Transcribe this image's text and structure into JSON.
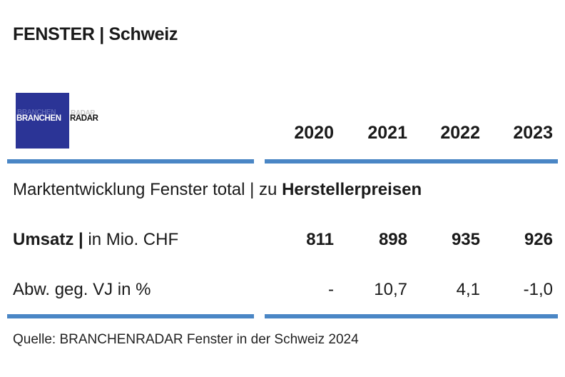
{
  "title": "FENSTER | Schweiz",
  "logo": {
    "part1": "BRANCHEN",
    "part2": "RADAR",
    "ghost": "RADAR"
  },
  "years": [
    "2020",
    "2021",
    "2022",
    "2023"
  ],
  "section": {
    "prefix": "Marktentwicklung Fenster total | zu ",
    "emphasis": "Herstellerpreisen"
  },
  "rows": [
    {
      "label_bold": "Umsatz |",
      "label_rest": " in Mio. CHF",
      "values": [
        "811",
        "898",
        "935",
        "926"
      ]
    },
    {
      "label": "Abw. geg. VJ in %",
      "values": [
        "-",
        "10,7",
        "4,1",
        "-1,0"
      ]
    }
  ],
  "source": "Quelle: BRANCHENRADAR Fenster in der Schweiz 2024",
  "colors": {
    "accent_blue": "#4a86c5",
    "logo_bg": "#2b3496"
  }
}
